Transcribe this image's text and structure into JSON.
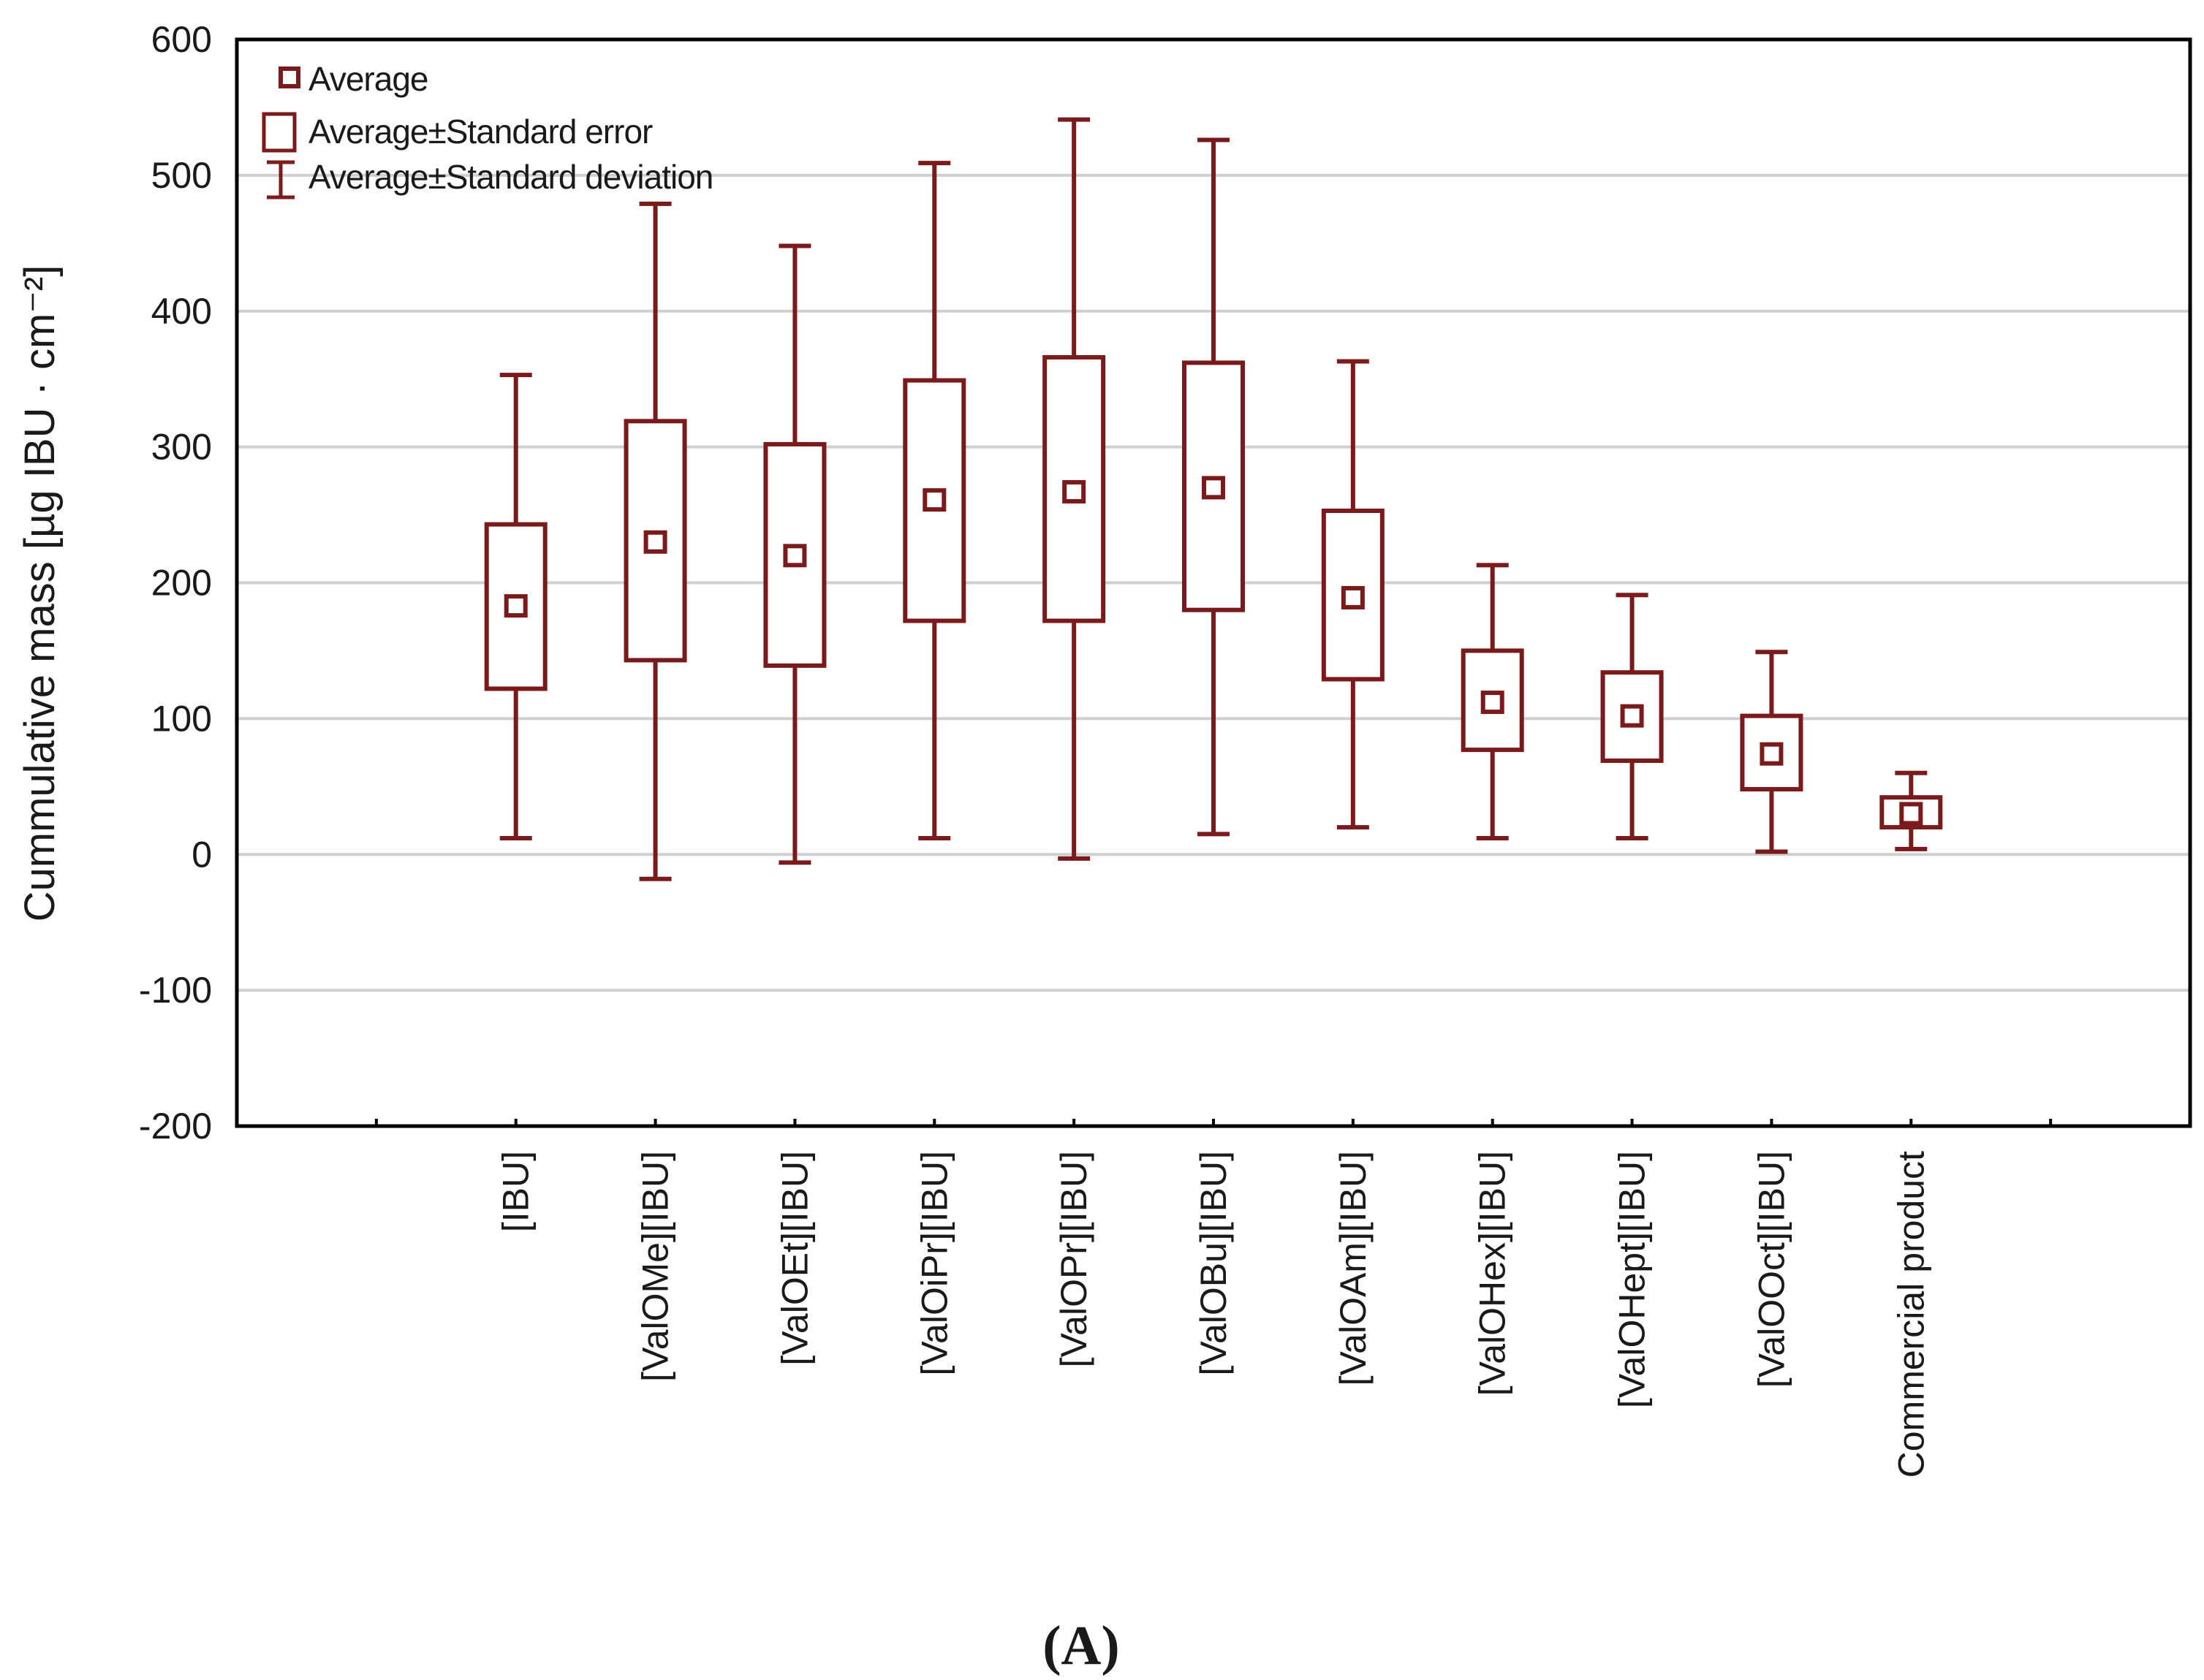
{
  "chart_data": {
    "type": "box",
    "title": "",
    "panel_label": "(A)",
    "xlabel": "",
    "ylabel": "Cummulative mass [µg IBU · cm⁻²]",
    "ylim": [
      -200,
      600
    ],
    "yticks": [
      -200,
      -100,
      0,
      100,
      200,
      300,
      400,
      500,
      600
    ],
    "ytick_labels": [
      "-200",
      "-100",
      "0",
      "100",
      "200",
      "300",
      "400",
      "500",
      "600"
    ],
    "grid": true,
    "color": "#7a1a1a",
    "legend_position": "top-left",
    "legend": {
      "average": "Average",
      "se": "Average±Standard error",
      "sd": "Average±Standard deviation"
    },
    "categories": [
      "[IBU]",
      "[ValOMe][IBU]",
      "[ValOEt][IBU]",
      "[ValOiPr][IBU]",
      "[ValOPr][IBU]",
      "[ValOBu][IBU]",
      "[ValOAm][IBU]",
      "[ValOHex][IBU]",
      "[ValOHept][IBU]",
      "[ValOOct][IBU]",
      "Commercial product"
    ],
    "series": [
      {
        "name": "Cummulative mass",
        "mean": [
          183,
          230,
          220,
          261,
          267,
          270,
          189,
          112,
          102,
          74,
          30
        ],
        "se_low": [
          122,
          143,
          139,
          172,
          172,
          180,
          129,
          77,
          69,
          48,
          20
        ],
        "se_high": [
          243,
          319,
          302,
          349,
          366,
          362,
          253,
          150,
          134,
          102,
          42
        ],
        "sd_low": [
          12,
          -18,
          -6,
          12,
          -3,
          15,
          20,
          12,
          12,
          2,
          4
        ],
        "sd_high": [
          353,
          479,
          448,
          509,
          541,
          526,
          363,
          213,
          191,
          149,
          60
        ]
      }
    ]
  }
}
